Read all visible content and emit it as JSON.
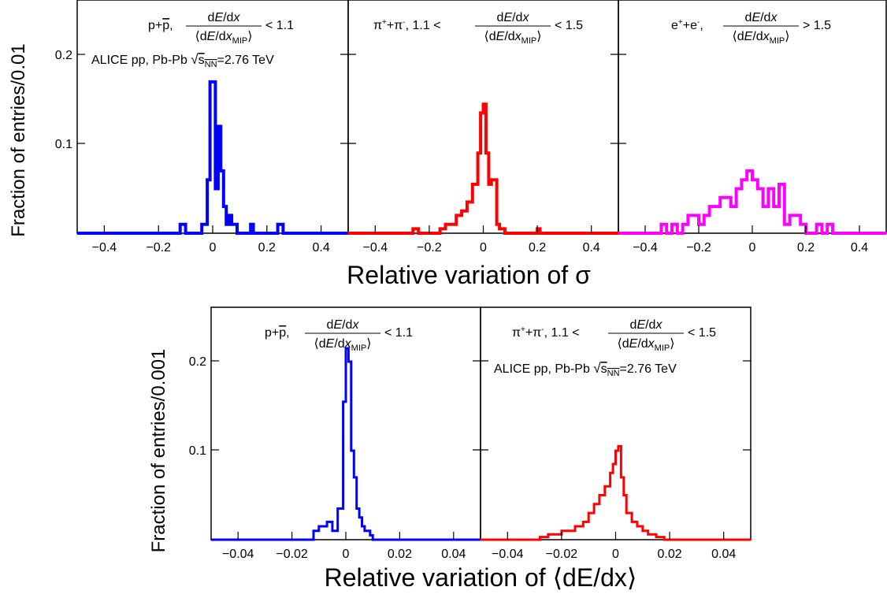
{
  "top": {
    "ylabel": "Fraction of entries/0.01",
    "xlabel": "Relative variation of σ",
    "yticks": [
      "0.1",
      "0.2"
    ],
    "xticks": [
      "−0.4",
      "−0.2",
      "0",
      "0.2",
      "0.4"
    ],
    "collab": "ALICE pp, Pb-Pb √s_NN=2.76 TeV"
  },
  "bottom": {
    "ylabel": "Fraction of entries/0.001",
    "xlabel": "Relative variation of ⟨dE/dx⟩",
    "yticks": [
      "0.1",
      "0.2"
    ],
    "xticks": [
      "−0.04",
      "−0.02",
      "0",
      "0.02",
      "0.04"
    ],
    "collab": "ALICE pp, Pb-Pb √s_NN=2.76 TeV"
  },
  "chart_data": [
    {
      "type": "histogram",
      "panel": "top-1",
      "label": "p+p̄, dE/dx / ⟨dE/dx_MIP⟩ < 1.1",
      "color": "#0000ff",
      "xlim": [
        -0.5,
        0.5
      ],
      "ylim": [
        0,
        0.25
      ],
      "bins": [
        [
          -0.5,
          -0.12,
          0
        ],
        [
          -0.12,
          -0.1,
          0.01
        ],
        [
          -0.1,
          -0.04,
          0
        ],
        [
          -0.04,
          -0.02,
          0.01
        ],
        [
          -0.02,
          -0.01,
          0.06
        ],
        [
          -0.01,
          0.01,
          0.17
        ],
        [
          0.01,
          0.02,
          0.05
        ],
        [
          0.02,
          0.03,
          0.12
        ],
        [
          0.03,
          0.04,
          0.07
        ],
        [
          0.04,
          0.05,
          0.03
        ],
        [
          0.05,
          0.06,
          0.01
        ],
        [
          0.06,
          0.07,
          0.02
        ],
        [
          0.07,
          0.09,
          0.01
        ],
        [
          0.09,
          0.14,
          0
        ],
        [
          0.14,
          0.15,
          0.01
        ],
        [
          0.15,
          0.24,
          0
        ],
        [
          0.24,
          0.26,
          0.01
        ],
        [
          0.26,
          0.5,
          0
        ]
      ]
    },
    {
      "type": "histogram",
      "panel": "top-2",
      "label": "π⁺+π⁻, 1.1 < dE/dx / ⟨dE/dx_MIP⟩ < 1.5",
      "color": "#ff0000",
      "xlim": [
        -0.5,
        0.5
      ],
      "ylim": [
        0,
        0.25
      ],
      "bins": [
        [
          -0.5,
          -0.26,
          0
        ],
        [
          -0.26,
          -0.24,
          0.005
        ],
        [
          -0.24,
          -0.16,
          0
        ],
        [
          -0.16,
          -0.14,
          0.005
        ],
        [
          -0.14,
          -0.1,
          0.01
        ],
        [
          -0.1,
          -0.08,
          0.02
        ],
        [
          -0.08,
          -0.06,
          0.025
        ],
        [
          -0.06,
          -0.04,
          0.035
        ],
        [
          -0.04,
          -0.02,
          0.055
        ],
        [
          -0.02,
          -0.01,
          0.09
        ],
        [
          -0.01,
          0.0,
          0.135
        ],
        [
          0.0,
          0.01,
          0.145
        ],
        [
          0.01,
          0.02,
          0.09
        ],
        [
          0.02,
          0.03,
          0.055
        ],
        [
          0.03,
          0.05,
          0.06
        ],
        [
          0.05,
          0.06,
          0.01
        ],
        [
          0.06,
          0.08,
          0.005
        ],
        [
          0.08,
          0.2,
          0
        ],
        [
          0.2,
          0.21,
          0.005
        ],
        [
          0.21,
          0.5,
          0
        ]
      ]
    },
    {
      "type": "histogram",
      "panel": "top-3",
      "label": "e⁺+e⁻, dE/dx / ⟨dE/dx_MIP⟩ > 1.5",
      "color": "#ff00ff",
      "xlim": [
        -0.5,
        0.5
      ],
      "ylim": [
        0,
        0.25
      ],
      "bins": [
        [
          -0.5,
          -0.34,
          0
        ],
        [
          -0.34,
          -0.32,
          0.01
        ],
        [
          -0.32,
          -0.3,
          0
        ],
        [
          -0.3,
          -0.28,
          0.01
        ],
        [
          -0.28,
          -0.26,
          0
        ],
        [
          -0.26,
          -0.24,
          0.01
        ],
        [
          -0.24,
          -0.2,
          0.02
        ],
        [
          -0.2,
          -0.18,
          0.01
        ],
        [
          -0.18,
          -0.16,
          0.02
        ],
        [
          -0.16,
          -0.12,
          0.03
        ],
        [
          -0.12,
          -0.08,
          0.04
        ],
        [
          -0.08,
          -0.06,
          0.03
        ],
        [
          -0.06,
          -0.04,
          0.05
        ],
        [
          -0.04,
          -0.02,
          0.06
        ],
        [
          -0.02,
          0.0,
          0.07
        ],
        [
          0.0,
          0.02,
          0.06
        ],
        [
          0.02,
          0.04,
          0.05
        ],
        [
          0.04,
          0.06,
          0.03
        ],
        [
          0.06,
          0.08,
          0.05
        ],
        [
          0.08,
          0.1,
          0.03
        ],
        [
          0.1,
          0.12,
          0.055
        ],
        [
          0.12,
          0.14,
          0.01
        ],
        [
          0.14,
          0.18,
          0.02
        ],
        [
          0.18,
          0.2,
          0.01
        ],
        [
          0.2,
          0.24,
          0
        ],
        [
          0.24,
          0.26,
          0.01
        ],
        [
          0.26,
          0.28,
          0
        ],
        [
          0.28,
          0.3,
          0.01
        ],
        [
          0.3,
          0.5,
          0
        ]
      ]
    },
    {
      "type": "histogram",
      "panel": "bottom-1",
      "label": "p+p̄, dE/dx / ⟨dE/dx_MIP⟩ < 1.1",
      "color": "#0000ff",
      "xlim": [
        -0.05,
        0.05
      ],
      "ylim": [
        0,
        0.25
      ],
      "bins": [
        [
          -0.05,
          -0.012,
          0
        ],
        [
          -0.012,
          -0.01,
          0.01
        ],
        [
          -0.01,
          -0.007,
          0.015
        ],
        [
          -0.007,
          -0.005,
          0.02
        ],
        [
          -0.005,
          -0.003,
          0.01
        ],
        [
          -0.003,
          -0.001,
          0.035
        ],
        [
          -0.001,
          0.0,
          0.155
        ],
        [
          0.0,
          0.001,
          0.215
        ],
        [
          0.001,
          0.002,
          0.2
        ],
        [
          0.002,
          0.003,
          0.1
        ],
        [
          0.003,
          0.004,
          0.07
        ],
        [
          0.004,
          0.005,
          0.035
        ],
        [
          0.005,
          0.006,
          0.025
        ],
        [
          0.006,
          0.007,
          0.015
        ],
        [
          0.007,
          0.009,
          0.01
        ],
        [
          0.009,
          0.01,
          0.005
        ],
        [
          0.01,
          0.05,
          0
        ]
      ]
    },
    {
      "type": "histogram",
      "panel": "bottom-2",
      "label": "π⁺+π⁻, 1.1 < dE/dx / ⟨dE/dx_MIP⟩ < 1.5",
      "color": "#ff0000",
      "xlim": [
        -0.05,
        0.05
      ],
      "ylim": [
        0,
        0.25
      ],
      "bins": [
        [
          -0.05,
          -0.028,
          0
        ],
        [
          -0.028,
          -0.025,
          0.003
        ],
        [
          -0.025,
          -0.02,
          0.006
        ],
        [
          -0.02,
          -0.015,
          0.01
        ],
        [
          -0.015,
          -0.012,
          0.015
        ],
        [
          -0.012,
          -0.01,
          0.02
        ],
        [
          -0.01,
          -0.008,
          0.03
        ],
        [
          -0.008,
          -0.006,
          0.04
        ],
        [
          -0.006,
          -0.004,
          0.05
        ],
        [
          -0.004,
          -0.002,
          0.06
        ],
        [
          -0.002,
          -0.001,
          0.075
        ],
        [
          -0.001,
          0.0,
          0.085
        ],
        [
          0.0,
          0.001,
          0.1
        ],
        [
          0.001,
          0.002,
          0.105
        ],
        [
          0.002,
          0.003,
          0.07
        ],
        [
          0.003,
          0.004,
          0.05
        ],
        [
          0.004,
          0.006,
          0.03
        ],
        [
          0.006,
          0.008,
          0.02
        ],
        [
          0.008,
          0.01,
          0.015
        ],
        [
          0.01,
          0.012,
          0.01
        ],
        [
          0.012,
          0.015,
          0.006
        ],
        [
          0.015,
          0.018,
          0.003
        ],
        [
          0.018,
          0.05,
          0
        ]
      ]
    }
  ]
}
